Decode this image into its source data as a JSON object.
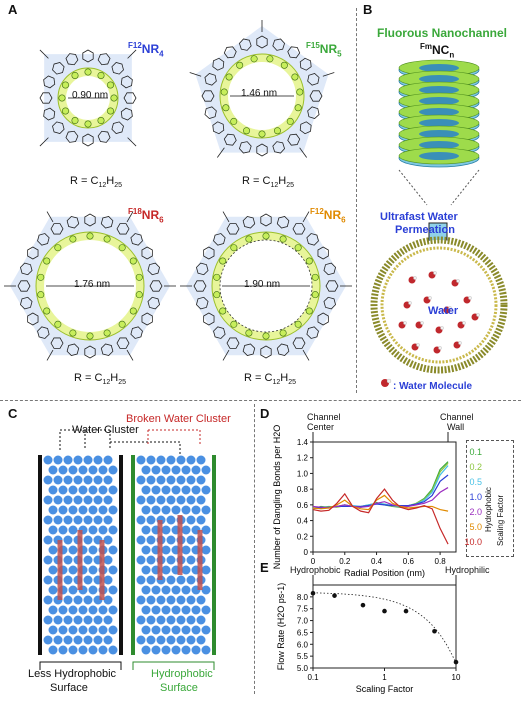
{
  "panels": {
    "a": {
      "label": "A",
      "molecules": [
        {
          "name_prefix": "F12",
          "name_main": "NR",
          "name_sub": "4",
          "diameter": "0.90 nm",
          "r_group": "R = C",
          "r_sub": "12",
          "r_tail": "H",
          "r_sub2": "25",
          "color": "#2b3fd6"
        },
        {
          "name_prefix": "F15",
          "name_main": "NR",
          "name_sub": "5",
          "diameter": "1.46 nm",
          "r_group": "R = C",
          "r_sub": "12",
          "r_tail": "H",
          "r_sub2": "25",
          "color": "#3aa83a"
        },
        {
          "name_prefix": "F18",
          "name_main": "NR",
          "name_sub": "6",
          "diameter": "1.76 nm",
          "r_group": "R = C",
          "r_sub": "12",
          "r_tail": "H",
          "r_sub2": "25",
          "color": "#c62828"
        },
        {
          "name_prefix": "F12",
          "name_main": "NR",
          "name_sub": "6",
          "diameter": "1.90 nm",
          "r_group": "R = C",
          "r_sub": "12",
          "r_tail": "H",
          "r_sub2": "25",
          "color": "#e08a00"
        }
      ]
    },
    "b": {
      "label": "B",
      "title": "Fluorous Nanochannel",
      "formula_prefix": "Fm",
      "formula_main": "NC",
      "formula_sub": "n",
      "perm_line1": "Ultrafast Water",
      "perm_line2": "Permeation",
      "water_label": "Water",
      "legend_label": ": Water Molecule"
    },
    "c": {
      "label": "C",
      "water_cluster": "Water Cluster",
      "broken_cluster": "Broken Water Cluster",
      "left_surface_line1": "Less Hydrophobic",
      "left_surface_line2": "Surface",
      "right_surface_line1": "Hydrophobic",
      "right_surface_line2": "Surface"
    },
    "d": {
      "label": "D",
      "top_left_line1": "Channel",
      "top_left_line2": "Center",
      "top_right_line1": "Channel",
      "top_right_line2": "Wall",
      "legend_title_1": "Hydrophobic",
      "legend_title_2": "Scaling Factor",
      "legend_values": [
        "0.1",
        "0.2",
        "0.5",
        "1.0",
        "2.0",
        "5.0",
        "10.0"
      ],
      "legend_colors": [
        "#3aa83a",
        "#8dc63f",
        "#46c1e6",
        "#2b3fd6",
        "#9b2dbf",
        "#e08a00",
        "#c62828"
      ]
    },
    "e": {
      "label": "E",
      "left_tag": "Hydrophobic",
      "right_tag": "Hydrophilic"
    }
  },
  "chart_data": [
    {
      "type": "line",
      "panel": "D",
      "xlabel": "Radial Position (nm)",
      "ylabel": "Number of Dangling Bonds per H2O",
      "xlim": [
        0,
        0.9
      ],
      "ylim": [
        0,
        1.4
      ],
      "xticks": [
        "0",
        "0.2",
        "0.4",
        "0.6",
        "0.8"
      ],
      "yticks": [
        "0",
        "0.2",
        "0.4",
        "0.6",
        "0.8",
        "1.0",
        "1.2",
        "1.4"
      ],
      "x": [
        0.0,
        0.05,
        0.1,
        0.15,
        0.2,
        0.25,
        0.3,
        0.35,
        0.4,
        0.45,
        0.5,
        0.55,
        0.6,
        0.65,
        0.7,
        0.75,
        0.8,
        0.85
      ],
      "series": [
        {
          "name": "0.1",
          "values": [
            0.55,
            0.58,
            0.57,
            0.58,
            0.6,
            0.58,
            0.57,
            0.59,
            0.63,
            0.6,
            0.58,
            0.57,
            0.58,
            0.62,
            0.68,
            0.8,
            1.05,
            1.15
          ]
        },
        {
          "name": "0.2",
          "values": [
            0.55,
            0.57,
            0.58,
            0.57,
            0.59,
            0.58,
            0.58,
            0.6,
            0.62,
            0.61,
            0.58,
            0.58,
            0.59,
            0.62,
            0.67,
            0.78,
            1.02,
            1.13
          ]
        },
        {
          "name": "0.5",
          "values": [
            0.56,
            0.57,
            0.57,
            0.58,
            0.59,
            0.59,
            0.58,
            0.6,
            0.62,
            0.61,
            0.59,
            0.58,
            0.59,
            0.61,
            0.66,
            0.76,
            0.98,
            1.1
          ]
        },
        {
          "name": "1.0",
          "values": [
            0.56,
            0.56,
            0.57,
            0.58,
            0.58,
            0.58,
            0.58,
            0.59,
            0.61,
            0.6,
            0.59,
            0.59,
            0.59,
            0.61,
            0.64,
            0.72,
            0.9,
            0.98
          ]
        },
        {
          "name": "2.0",
          "values": [
            0.58,
            0.57,
            0.56,
            0.58,
            0.6,
            0.58,
            0.57,
            0.58,
            0.62,
            0.64,
            0.6,
            0.58,
            0.58,
            0.6,
            0.62,
            0.66,
            0.76,
            0.82
          ]
        },
        {
          "name": "5.0",
          "values": [
            0.56,
            0.55,
            0.56,
            0.6,
            0.66,
            0.58,
            0.55,
            0.54,
            0.66,
            0.72,
            0.62,
            0.58,
            0.56,
            0.57,
            0.58,
            0.58,
            0.54,
            0.52
          ]
        },
        {
          "name": "10.0",
          "values": [
            0.54,
            0.52,
            0.53,
            0.62,
            0.74,
            0.58,
            0.52,
            0.5,
            0.68,
            0.8,
            0.66,
            0.57,
            0.54,
            0.56,
            0.59,
            0.55,
            0.3,
            0.1
          ]
        }
      ]
    },
    {
      "type": "scatter",
      "panel": "E",
      "xlabel": "Scaling Factor",
      "ylabel": "Flow Rate (H2O ps-1)",
      "xscale": "log",
      "xlim": [
        0.1,
        10
      ],
      "ylim": [
        5.0,
        8.5
      ],
      "xticks": [
        "0.1",
        "1",
        "10"
      ],
      "yticks": [
        "5.0",
        "5.5",
        "6.0",
        "6.5",
        "7.0",
        "7.5",
        "8.0"
      ],
      "x": [
        0.1,
        0.2,
        0.5,
        1.0,
        2.0,
        5.0,
        10.0
      ],
      "values": [
        8.15,
        8.05,
        7.65,
        7.4,
        7.4,
        6.55,
        5.25
      ],
      "fit": "dotted"
    }
  ]
}
